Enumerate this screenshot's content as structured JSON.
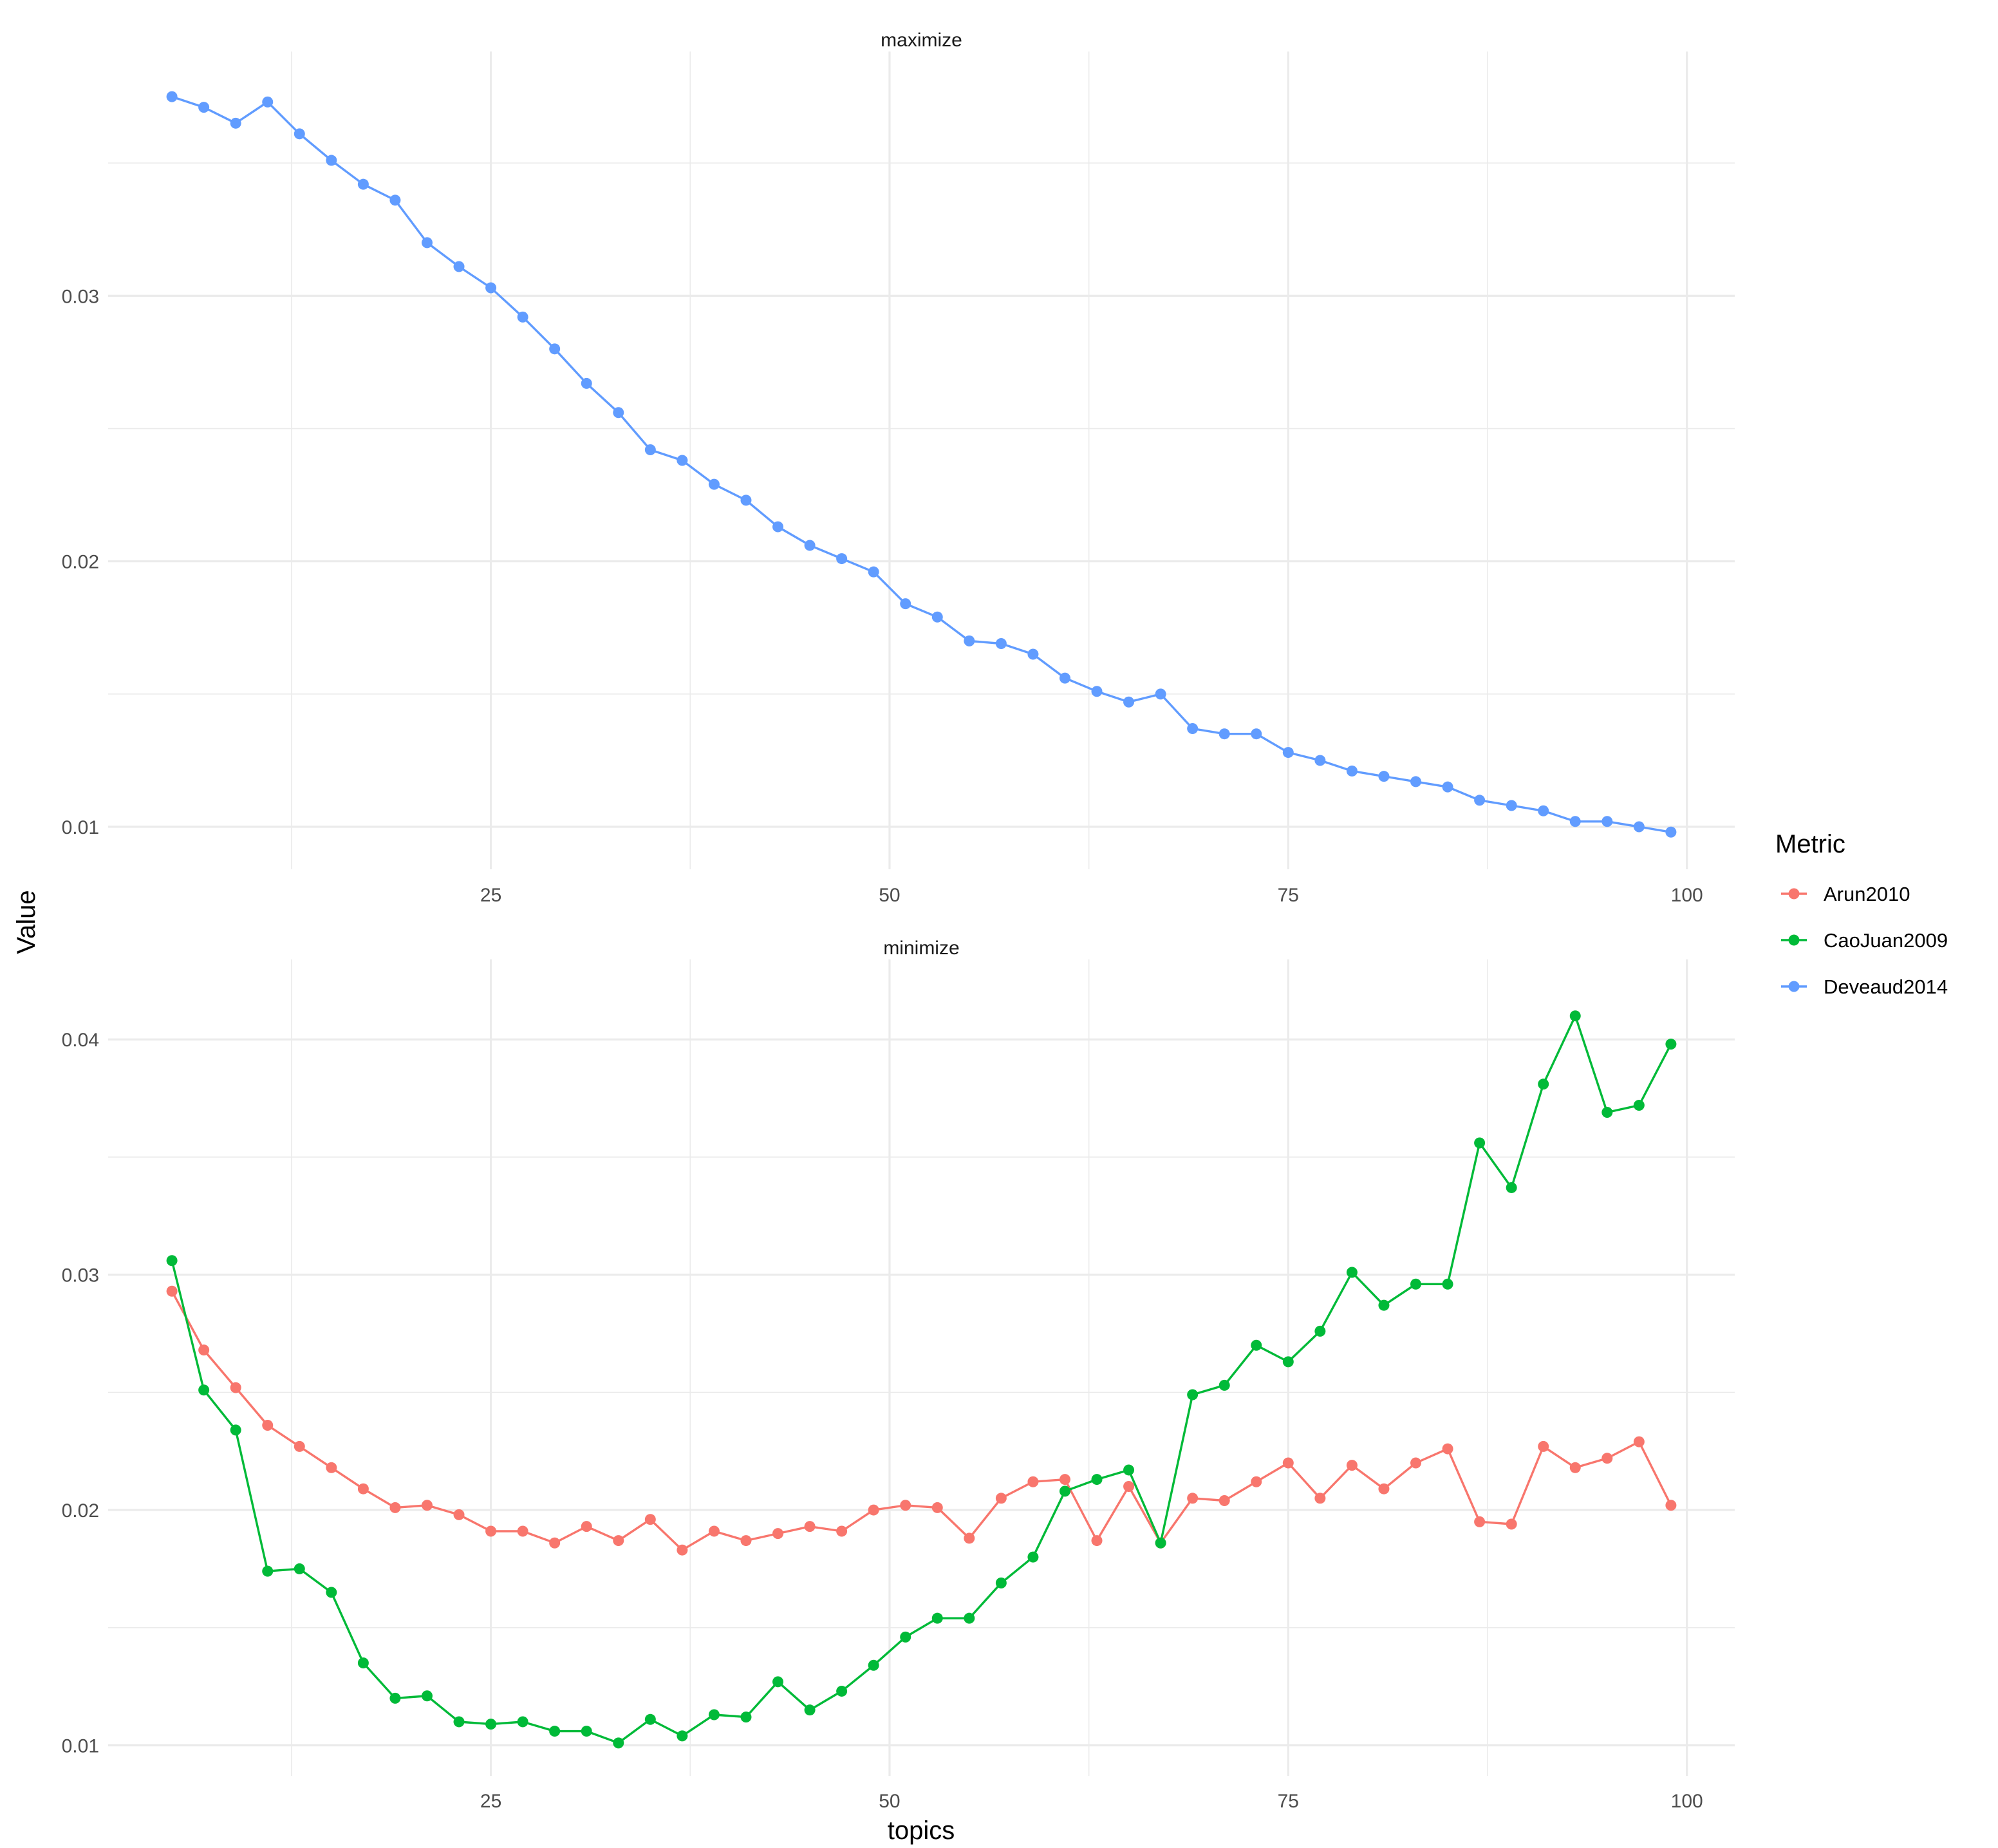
{
  "chart_data": {
    "type": "line",
    "x_label": "topics",
    "y_label": "Value",
    "legend": {
      "title": "Metric",
      "position": "right",
      "entries": [
        {
          "name": "Arun2010",
          "color": "#F8766D"
        },
        {
          "name": "CaoJuan2009",
          "color": "#00BA38"
        },
        {
          "name": "Deveaud2014",
          "color": "#619CFF"
        }
      ]
    },
    "facets": [
      {
        "title": "maximize",
        "xlim": [
          1,
          103
        ],
        "ylim": [
          0.0084,
          0.0392
        ],
        "x_ticks": [
          25,
          50,
          75,
          100
        ],
        "y_ticks": [
          0.01,
          0.02,
          0.03
        ],
        "y_tick_labels": [
          "0.01",
          "0.02",
          "0.03"
        ],
        "series": [
          {
            "name": "Deveaud2014",
            "color": "#619CFF",
            "x": [
              5,
              7,
              9,
              11,
              13,
              15,
              17,
              19,
              21,
              23,
              25,
              27,
              29,
              31,
              33,
              35,
              37,
              39,
              41,
              43,
              45,
              47,
              49,
              51,
              53,
              55,
              57,
              59,
              61,
              63,
              65,
              67,
              69,
              71,
              73,
              75,
              77,
              79,
              81,
              83,
              85,
              87,
              89,
              91,
              93,
              95,
              97,
              99
            ],
            "y": [
              0.0375,
              0.0371,
              0.0365,
              0.0373,
              0.0361,
              0.0351,
              0.0342,
              0.0336,
              0.032,
              0.0311,
              0.0303,
              0.0292,
              0.028,
              0.0267,
              0.0256,
              0.0242,
              0.0238,
              0.0229,
              0.0223,
              0.0213,
              0.0206,
              0.0201,
              0.0196,
              0.0184,
              0.0179,
              0.017,
              0.0169,
              0.0165,
              0.0156,
              0.0151,
              0.0147,
              0.015,
              0.0137,
              0.0135,
              0.0135,
              0.0128,
              0.0125,
              0.0121,
              0.0119,
              0.0117,
              0.0115,
              0.011,
              0.0108,
              0.0106,
              0.0102,
              0.0102,
              0.01,
              0.0098
            ]
          }
        ]
      },
      {
        "title": "minimize",
        "xlim": [
          1,
          103
        ],
        "ylim": [
          0.0087,
          0.0434
        ],
        "x_ticks": [
          25,
          50,
          75,
          100
        ],
        "y_ticks": [
          0.01,
          0.02,
          0.03,
          0.04
        ],
        "y_tick_labels": [
          "0.01",
          "0.02",
          "0.03",
          "0.04"
        ],
        "series": [
          {
            "name": "Arun2010",
            "color": "#F8766D",
            "x": [
              5,
              7,
              9,
              11,
              13,
              15,
              17,
              19,
              21,
              23,
              25,
              27,
              29,
              31,
              33,
              35,
              37,
              39,
              41,
              43,
              45,
              47,
              49,
              51,
              53,
              55,
              57,
              59,
              61,
              63,
              65,
              67,
              69,
              71,
              73,
              75,
              77,
              79,
              81,
              83,
              85,
              87,
              89,
              91,
              93,
              95,
              97,
              99
            ],
            "y": [
              0.0293,
              0.0268,
              0.0252,
              0.0236,
              0.0227,
              0.0218,
              0.0209,
              0.0201,
              0.0202,
              0.0198,
              0.0191,
              0.0191,
              0.0186,
              0.0193,
              0.0187,
              0.0196,
              0.0183,
              0.0191,
              0.0187,
              0.019,
              0.0193,
              0.0191,
              0.02,
              0.0202,
              0.0201,
              0.0188,
              0.0205,
              0.0212,
              0.0213,
              0.0187,
              0.021,
              0.0186,
              0.0205,
              0.0204,
              0.0212,
              0.022,
              0.0205,
              0.0219,
              0.0209,
              0.022,
              0.0226,
              0.0195,
              0.0194,
              0.0227,
              0.0218,
              0.0222,
              0.0229,
              0.0202
            ]
          },
          {
            "name": "CaoJuan2009",
            "color": "#00BA38",
            "x": [
              5,
              7,
              9,
              11,
              13,
              15,
              17,
              19,
              21,
              23,
              25,
              27,
              29,
              31,
              33,
              35,
              37,
              39,
              41,
              43,
              45,
              47,
              49,
              51,
              53,
              55,
              57,
              59,
              61,
              63,
              65,
              67,
              69,
              71,
              73,
              75,
              77,
              79,
              81,
              83,
              85,
              87,
              89,
              91,
              93,
              95,
              97,
              99
            ],
            "y": [
              0.0306,
              0.0251,
              0.0234,
              0.0174,
              0.0175,
              0.0165,
              0.0135,
              0.012,
              0.0121,
              0.011,
              0.0109,
              0.011,
              0.0106,
              0.0106,
              0.0101,
              0.0111,
              0.0104,
              0.0113,
              0.0112,
              0.0127,
              0.0115,
              0.0123,
              0.0134,
              0.0146,
              0.0154,
              0.0154,
              0.0169,
              0.018,
              0.0208,
              0.0213,
              0.0217,
              0.0186,
              0.0249,
              0.0253,
              0.027,
              0.0263,
              0.0276,
              0.0301,
              0.0287,
              0.0296,
              0.0296,
              0.0356,
              0.0337,
              0.0381,
              0.041,
              0.0369,
              0.0372,
              0.0398
            ]
          }
        ]
      }
    ]
  }
}
